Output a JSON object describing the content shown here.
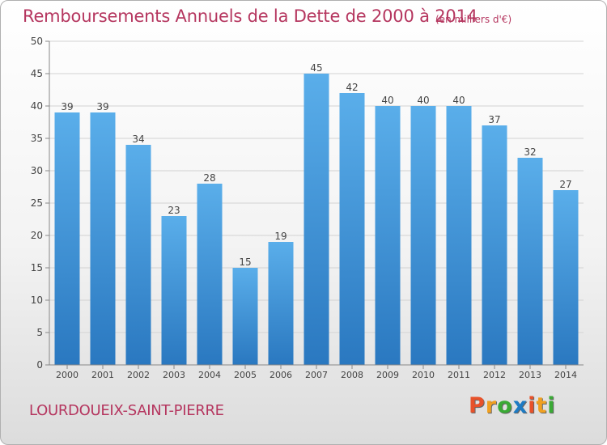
{
  "chart_data": {
    "type": "bar",
    "title": "Remboursements Annuels de la Dette de 2000 à 2014",
    "subtitle": "(en milliers d'€)",
    "categories": [
      "2000",
      "2001",
      "2002",
      "2003",
      "2004",
      "2005",
      "2006",
      "2007",
      "2008",
      "2009",
      "2010",
      "2011",
      "2012",
      "2013",
      "2014"
    ],
    "values": [
      39,
      39,
      34,
      23,
      28,
      15,
      19,
      45,
      42,
      40,
      40,
      40,
      37,
      32,
      27
    ],
    "yticks": [
      0,
      5,
      10,
      15,
      20,
      25,
      30,
      35,
      40,
      45,
      50
    ],
    "ylim": [
      0,
      50
    ],
    "grid": true,
    "legend": "none",
    "bar_color": "#3d8fd6"
  },
  "footer": {
    "commune": "LOURDOUEIX-SAINT-PIERRE",
    "logo_letters": [
      "P",
      "r",
      "o",
      "x",
      "i",
      "t",
      "i"
    ],
    "logo_colors": [
      "#e8522a",
      "#f0a020",
      "#3aaa35",
      "#1d7bc4",
      "#e8522a",
      "#f0a020",
      "#3aaa35"
    ]
  }
}
